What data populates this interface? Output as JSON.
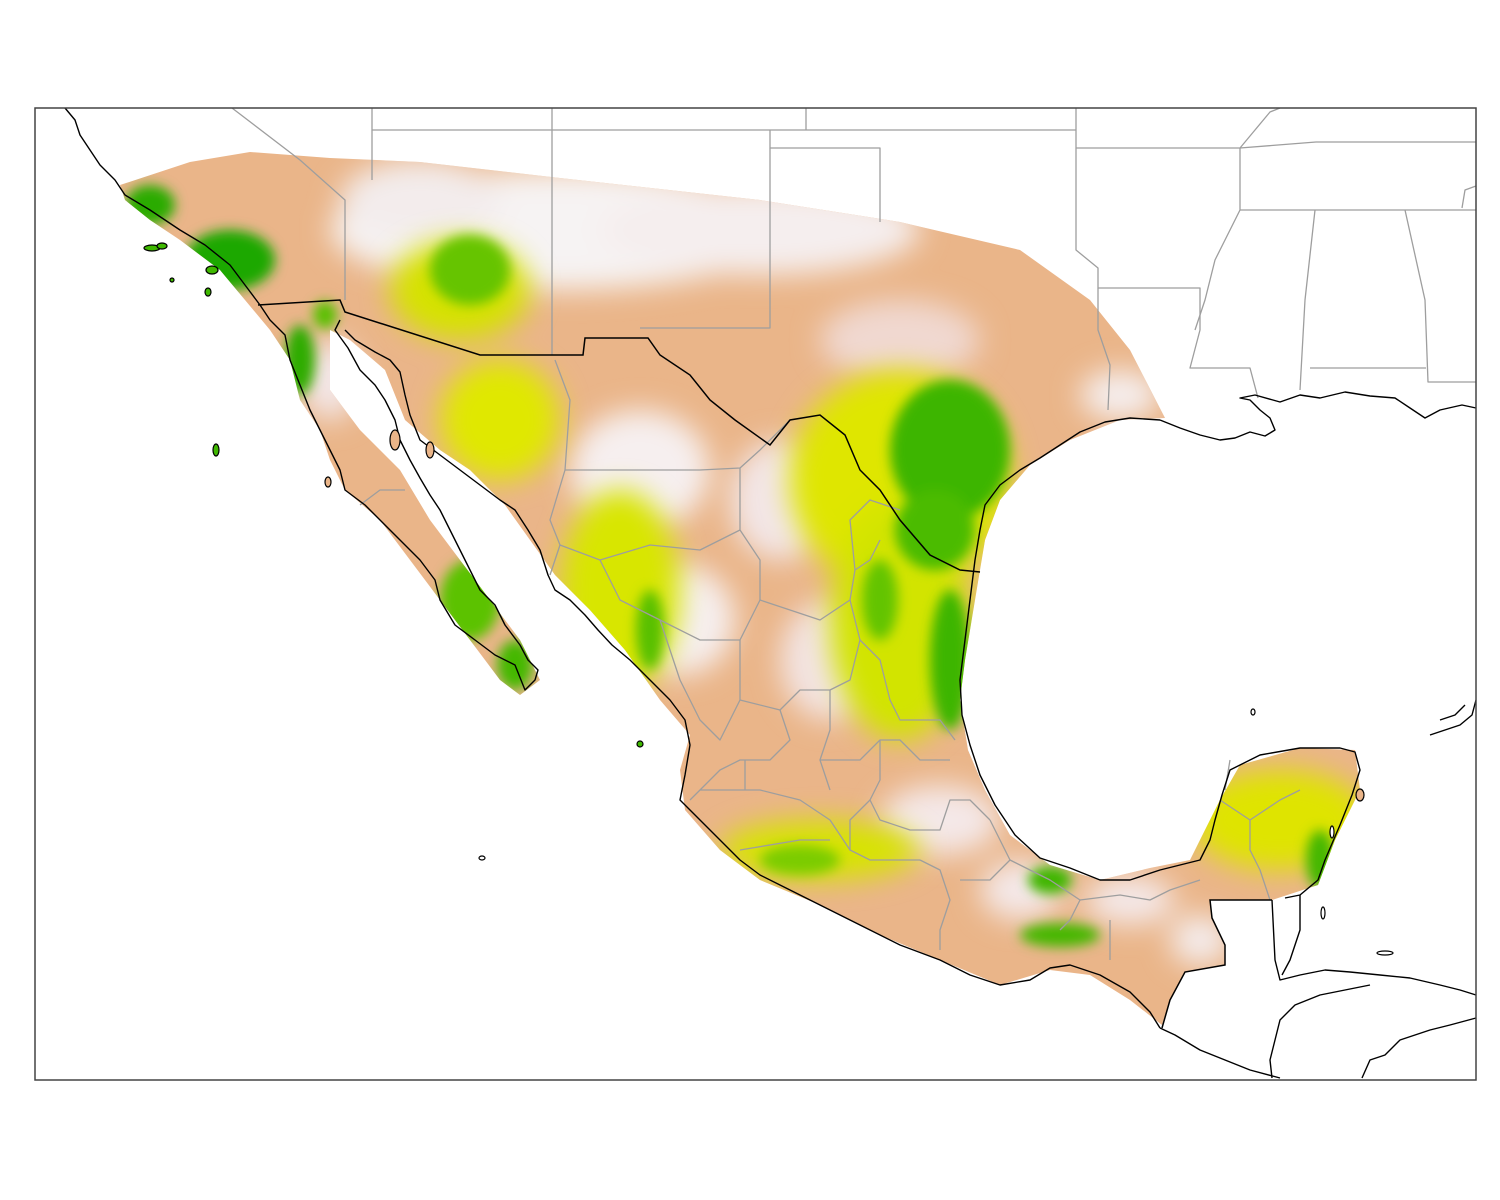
{
  "map": {
    "legend": "",
    "palette": {
      "background": "#ffffff",
      "low": "#f4f0f0",
      "pink": "#f0c8bc",
      "tan": "#e8b27c",
      "yellow": "#dfe800",
      "light_green": "#9ed400",
      "green": "#3fb800",
      "dark_green": "#12a300",
      "border_gray": "#9e9e9e",
      "coast_black": "#000000",
      "frame_gray": "#444444"
    }
  }
}
